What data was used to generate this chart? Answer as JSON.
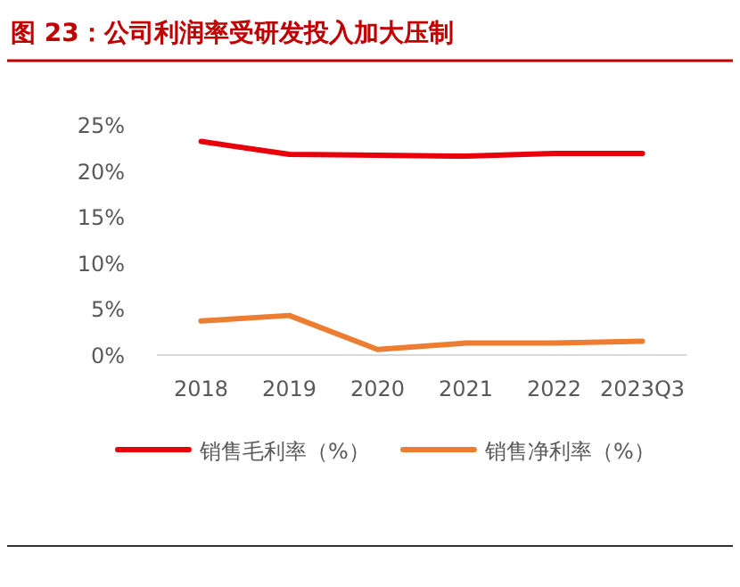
{
  "chart_data": {
    "type": "line",
    "title": "图 23：公司利润率受研发投入加大压制",
    "categories": [
      "2018",
      "2019",
      "2020",
      "2021",
      "2022",
      "2023Q3"
    ],
    "series": [
      {
        "name": "销售毛利率（%）",
        "color": "#e8000b",
        "values": [
          23.2,
          21.8,
          21.7,
          21.6,
          21.9,
          21.9
        ]
      },
      {
        "name": "销售净利率（%）",
        "color": "#ed7d31",
        "values": [
          3.7,
          4.3,
          0.6,
          1.3,
          1.3,
          1.5
        ]
      }
    ],
    "ylim": [
      0,
      25
    ],
    "yticks": [
      {
        "value": 0,
        "label": "0%"
      },
      {
        "value": 5,
        "label": "5%"
      },
      {
        "value": 10,
        "label": "10%"
      },
      {
        "value": 15,
        "label": "15%"
      },
      {
        "value": 20,
        "label": "20%"
      },
      {
        "value": 25,
        "label": "25%"
      }
    ],
    "grid": false,
    "legend": "bottom",
    "marker": "none",
    "line_style": "solid"
  }
}
